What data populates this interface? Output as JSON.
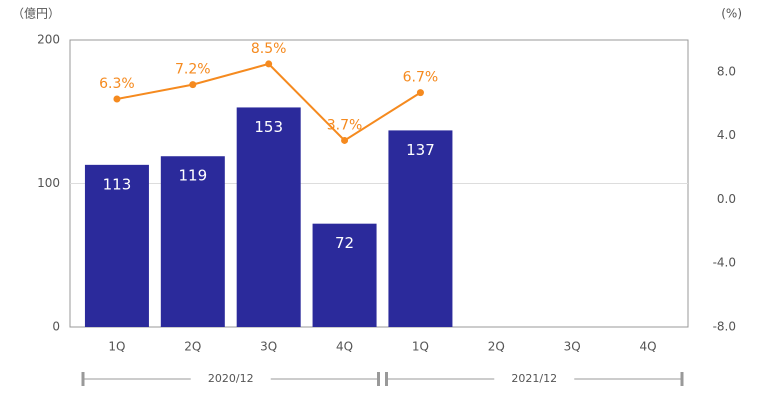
{
  "chart_data": {
    "type": "bar+line",
    "y_axis_label": "（億円）",
    "y2_axis_label": "(%)",
    "categories": [
      "1Q",
      "2Q",
      "3Q",
      "4Q",
      "1Q",
      "2Q",
      "3Q",
      "4Q"
    ],
    "groups": [
      "2020/12",
      "2021/12"
    ],
    "series": [
      {
        "type": "bar",
        "color": "#2b2a9b",
        "values": [
          113,
          119,
          153,
          72,
          137,
          null,
          null,
          null
        ]
      },
      {
        "type": "line",
        "axis": "y2",
        "color": "#f58a1f",
        "values": [
          6.3,
          7.2,
          8.5,
          3.7,
          6.7,
          null,
          null,
          null
        ],
        "value_labels": [
          "6.3%",
          "7.2%",
          "8.5%",
          "3.7%",
          "6.7%",
          null,
          null,
          null
        ]
      }
    ],
    "ylim": [
      0,
      200
    ],
    "yticks": [
      0,
      100,
      200
    ],
    "y2lim": [
      -8,
      10
    ],
    "y2ticks": [
      {
        "value": -8,
        "label": "-8.0"
      },
      {
        "value": -4,
        "label": "-4.0"
      },
      {
        "value": 0,
        "label": "0.0"
      },
      {
        "value": 4,
        "label": "4.0"
      },
      {
        "value": 8,
        "label": "8.0"
      }
    ],
    "grid": true
  }
}
